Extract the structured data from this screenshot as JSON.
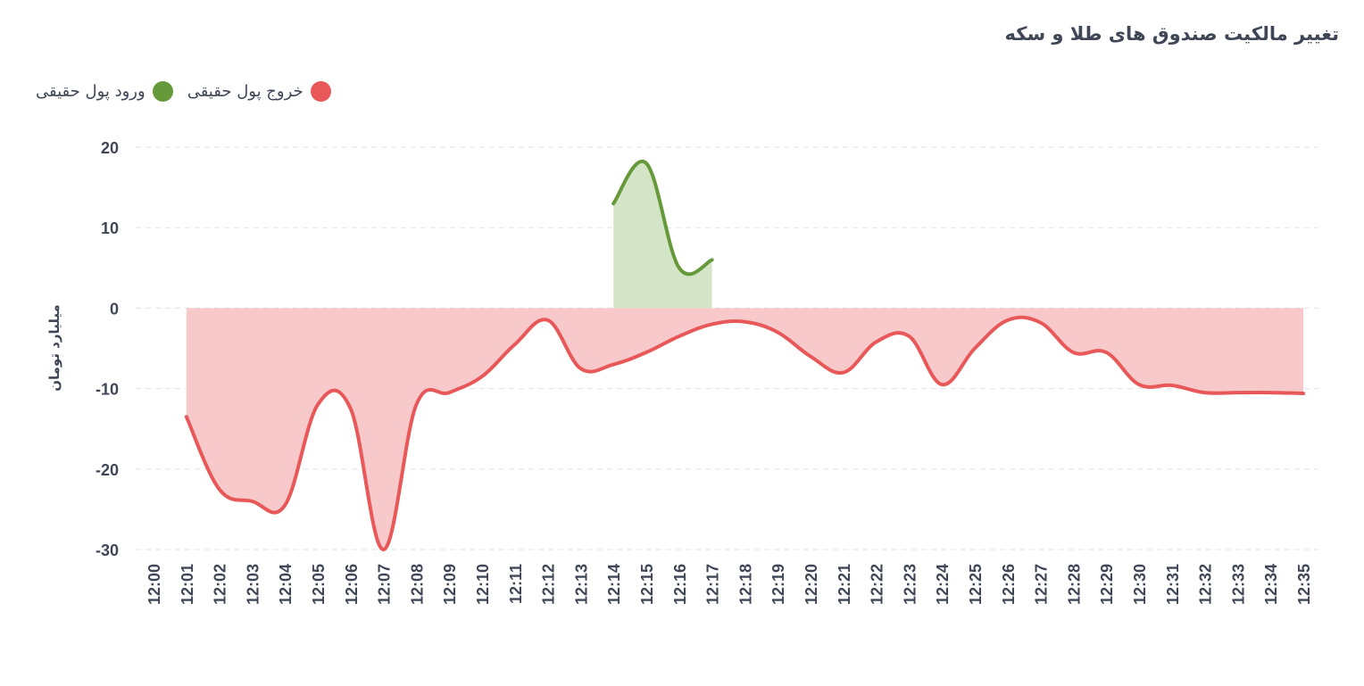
{
  "chart_data": {
    "type": "area",
    "title": "تغییر مالکیت صندوق های طلا و سکه",
    "xlabel": "",
    "ylabel": "میلیارد تومان",
    "ylim": [
      -30,
      20
    ],
    "yticks": [
      "20",
      "10",
      "0",
      "-10",
      "-20",
      "-30"
    ],
    "grid": true,
    "legend_position": "top-left",
    "categories": [
      "12:00",
      "12:01",
      "12:02",
      "12:03",
      "12:04",
      "12:05",
      "12:06",
      "12:07",
      "12:08",
      "12:09",
      "12:10",
      "12:11",
      "12:12",
      "12:13",
      "12:14",
      "12:15",
      "12:16",
      "12:17",
      "12:18",
      "12:19",
      "12:20",
      "12:21",
      "12:22",
      "12:23",
      "12:24",
      "12:25",
      "12:26",
      "12:27",
      "12:28",
      "12:29",
      "12:30",
      "12:31",
      "12:32",
      "12:33",
      "12:34",
      "12:35"
    ],
    "series": [
      {
        "name": "ورود پول حقیقی",
        "color": "#66993a",
        "fill": "#d4e4c6",
        "values": [
          null,
          null,
          null,
          null,
          null,
          null,
          null,
          null,
          null,
          null,
          null,
          null,
          null,
          null,
          13,
          18,
          5,
          6,
          null,
          null,
          null,
          null,
          null,
          null,
          null,
          null,
          null,
          null,
          null,
          null,
          null,
          null,
          null,
          null,
          null,
          null
        ]
      },
      {
        "name": "خروج پول حقیقی",
        "color": "#e85858",
        "fill": "#f7c9ca",
        "values": [
          null,
          -13.5,
          -22.5,
          -24,
          -24.5,
          -12,
          -12.5,
          -30,
          -12,
          -10.5,
          -8.5,
          -4.5,
          -1.5,
          -7.5,
          -7,
          -5.5,
          -3.5,
          -2,
          -1.7,
          -3,
          -6,
          -8,
          -4.2,
          -3.5,
          -9.5,
          -5,
          -1.5,
          -1.8,
          -5.5,
          -5.5,
          -9.5,
          -9.6,
          -10.5,
          -10.5,
          -10.5,
          -10.6
        ]
      }
    ]
  }
}
